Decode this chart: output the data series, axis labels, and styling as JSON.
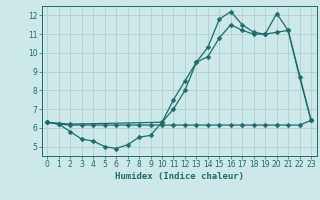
{
  "xlabel": "Humidex (Indice chaleur)",
  "bg_color": "#cce8e8",
  "grid_color": "#aacccc",
  "line_color": "#1a6e6a",
  "xlim": [
    -0.5,
    23.5
  ],
  "ylim": [
    4.5,
    12.5
  ],
  "xticks": [
    0,
    1,
    2,
    3,
    4,
    5,
    6,
    7,
    8,
    9,
    10,
    11,
    12,
    13,
    14,
    15,
    16,
    17,
    18,
    19,
    20,
    21,
    22,
    23
  ],
  "yticks": [
    5,
    6,
    7,
    8,
    9,
    10,
    11,
    12
  ],
  "line1_x": [
    0,
    1,
    2,
    3,
    4,
    5,
    6,
    7,
    8,
    9,
    10,
    11,
    12,
    13,
    14,
    15,
    16,
    17,
    18,
    19,
    20,
    21,
    22,
    23
  ],
  "line1_y": [
    6.3,
    6.2,
    6.15,
    6.15,
    6.15,
    6.15,
    6.15,
    6.15,
    6.15,
    6.15,
    6.15,
    6.15,
    6.15,
    6.15,
    6.15,
    6.15,
    6.15,
    6.15,
    6.15,
    6.15,
    6.15,
    6.15,
    6.15,
    6.4
  ],
  "line2_x": [
    0,
    1,
    2,
    3,
    4,
    5,
    6,
    7,
    8,
    9,
    10,
    11,
    12,
    13,
    14,
    15,
    16,
    17,
    18,
    19,
    20,
    21,
    22,
    23
  ],
  "line2_y": [
    6.3,
    6.2,
    5.8,
    5.4,
    5.3,
    5.0,
    4.9,
    5.1,
    5.5,
    5.6,
    6.3,
    7.0,
    8.0,
    9.5,
    9.8,
    10.8,
    11.5,
    11.2,
    11.0,
    11.0,
    11.1,
    11.2,
    8.7,
    6.4
  ],
  "line3_x": [
    0,
    2,
    10,
    11,
    12,
    13,
    14,
    15,
    16,
    17,
    18,
    19,
    20,
    21,
    23
  ],
  "line3_y": [
    6.3,
    6.2,
    6.3,
    7.5,
    8.5,
    9.5,
    10.3,
    11.8,
    12.2,
    11.5,
    11.1,
    11.0,
    12.1,
    11.2,
    6.4
  ]
}
